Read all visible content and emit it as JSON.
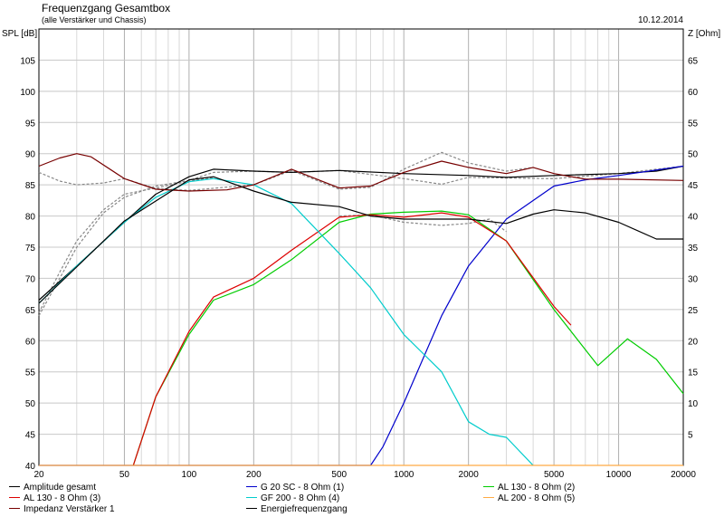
{
  "header": {
    "title": "Frequenzgang Gesamtbox",
    "subtitle": "(alle Verstärker und Chassis)",
    "date": "10.12.2014"
  },
  "chart_data": {
    "type": "line",
    "title": "Frequenzgang Gesamtbox",
    "subtitle": "(alle Verstärker und Chassis)",
    "ylabel": "SPL [dB]",
    "y2label": "Z [Ohm]",
    "xscale": "log",
    "xlim": [
      20,
      20000
    ],
    "ylim": [
      40,
      110
    ],
    "y2lim": [
      0,
      70
    ],
    "grid": true,
    "x_ticks": [
      "20",
      "50",
      "100",
      "200",
      "500",
      "1000",
      "2000",
      "5000",
      "10000",
      "20000"
    ],
    "y_ticks": [
      "40",
      "45",
      "50",
      "55",
      "60",
      "65",
      "70",
      "75",
      "80",
      "85",
      "90",
      "95",
      "100",
      "105"
    ],
    "y2_ticks": [
      "5",
      "10",
      "15",
      "20",
      "25",
      "30",
      "35",
      "40",
      "45",
      "50",
      "55",
      "60",
      "65"
    ],
    "series": [
      {
        "name": "Amplitude gesamt",
        "color": "#000000",
        "style": "solid",
        "x": [
          20,
          30,
          50,
          70,
          100,
          130,
          200,
          300,
          500,
          1000,
          2000,
          3000,
          5000,
          10000,
          15000,
          20000
        ],
        "y": [
          66.5,
          72,
          79,
          83.5,
          86.3,
          87.5,
          87.2,
          87,
          87.3,
          86.8,
          86.5,
          86.2,
          86.5,
          86.8,
          87.2,
          88
        ]
      },
      {
        "name": "G 20 SC - 8 Ohm (1)",
        "color": "#0000cc",
        "style": "solid",
        "x": [
          20,
          700,
          800,
          1000,
          1500,
          2000,
          3000,
          5000,
          7000,
          10000,
          20000
        ],
        "y": [
          40,
          40,
          43,
          50,
          64,
          72,
          79.5,
          84.8,
          85.8,
          86.5,
          88
        ]
      },
      {
        "name": "AL 130 - 8 Ohm (2)",
        "color": "#00cc00",
        "style": "solid",
        "x": [
          55,
          70,
          100,
          130,
          200,
          300,
          500,
          700,
          1000,
          1500,
          2000,
          3000,
          5000,
          8000,
          11000,
          15000,
          20000
        ],
        "y": [
          40,
          51,
          61,
          66.5,
          69,
          73,
          79,
          80.3,
          80.6,
          80.8,
          80.2,
          76,
          65,
          56,
          60.3,
          57,
          51.5
        ]
      },
      {
        "name": "AL 130 - 8 Ohm (3)",
        "color": "#dd0000",
        "style": "solid",
        "x": [
          55,
          70,
          100,
          130,
          200,
          300,
          500,
          700,
          1000,
          1500,
          2000,
          3000,
          5000,
          6000
        ],
        "y": [
          40,
          51,
          61.5,
          67,
          70,
          74.5,
          79.8,
          80.2,
          79.8,
          80.5,
          79.8,
          76,
          65.5,
          62.5
        ]
      },
      {
        "name": "GF 200 - 8 Ohm (4)",
        "color": "#00cccc",
        "style": "solid",
        "x": [
          20,
          30,
          50,
          70,
          100,
          130,
          200,
          300,
          500,
          700,
          1000,
          1500,
          2000,
          2500,
          3000,
          4000
        ],
        "y": [
          66,
          72,
          79,
          83,
          85.5,
          86,
          85,
          82,
          74,
          68.5,
          61,
          55,
          47,
          45,
          44.5,
          40
        ]
      },
      {
        "name": "AL 200 - 8 Ohm (5)",
        "color": "#ffaa44",
        "style": "solid",
        "x": [
          20,
          20000
        ],
        "y": [
          40,
          40
        ]
      },
      {
        "name": "Impedanz Verstärker 1",
        "color": "#770000",
        "style": "solid",
        "axis": "right",
        "x": [
          20,
          25,
          30,
          35,
          50,
          70,
          100,
          150,
          200,
          300,
          400,
          500,
          700,
          1000,
          1500,
          2000,
          3000,
          4000,
          5000,
          7000,
          10000,
          20000
        ],
        "y": [
          48,
          49.3,
          50,
          49.5,
          46,
          44.3,
          44,
          44.2,
          45,
          47.5,
          45.8,
          44.5,
          44.8,
          47,
          48.8,
          47.8,
          46.8,
          47.8,
          46.8,
          45.9,
          45.9,
          45.7
        ]
      },
      {
        "name": "Energiefrequenzgang",
        "color": "#000000",
        "style": "solid",
        "x": [
          20,
          50,
          100,
          130,
          200,
          300,
          500,
          700,
          1000,
          2000,
          3000,
          4000,
          5000,
          7000,
          10000,
          15000,
          20000
        ],
        "y": [
          66,
          79.2,
          85.8,
          86.3,
          84,
          82.2,
          81.5,
          80,
          79.5,
          79.5,
          78.8,
          80.3,
          81,
          80.5,
          79,
          76.3,
          76.3
        ]
      },
      {
        "name": "",
        "color": "#888888",
        "style": "dashed",
        "x": [
          20,
          25,
          30,
          40,
          50,
          70,
          100,
          130,
          200,
          300,
          500,
          1000,
          1500,
          2000,
          3000,
          5000,
          10000,
          20000
        ],
        "y": [
          64,
          70,
          75,
          80.5,
          83,
          84.8,
          85.7,
          87,
          87.2,
          87,
          87.3,
          86,
          85.1,
          86.2,
          86.1,
          86,
          86.8,
          88
        ]
      },
      {
        "name": "",
        "color": "#888888",
        "style": "dashed",
        "x": [
          20,
          25,
          30,
          40,
          50,
          70,
          100,
          130
        ],
        "y": [
          64.5,
          71,
          76,
          81,
          83.5,
          84.5,
          85.6,
          86.2
        ]
      },
      {
        "name": "",
        "color": "#888888",
        "style": "dashed",
        "x": [
          500,
          700,
          1000,
          1500,
          2000,
          2500,
          3000
        ],
        "y": [
          80,
          80.2,
          79,
          78.5,
          78.8,
          79.5,
          77.5
        ]
      },
      {
        "name": "",
        "color": "#888888",
        "style": "dashed",
        "x": [
          20,
          25,
          30,
          40,
          50,
          70,
          100,
          200,
          300,
          500,
          700,
          1000,
          1500,
          2000,
          3000,
          4000
        ],
        "y": [
          47,
          45.6,
          45,
          45.3,
          46,
          44.4,
          44.1,
          45,
          47.3,
          44.3,
          44.6,
          47.5,
          50.2,
          48.5,
          47.2,
          47.8
        ],
        "axis": "right"
      }
    ]
  },
  "legend": [
    "Amplitude gesamt",
    "G 20 SC - 8 Ohm (1)",
    "AL 130 - 8 Ohm (2)",
    "AL 130 - 8 Ohm (3)",
    "GF 200 - 8 Ohm (4)",
    "AL 200 - 8 Ohm (5)",
    "Impedanz Verstärker 1",
    "Energiefrequenzgang"
  ]
}
